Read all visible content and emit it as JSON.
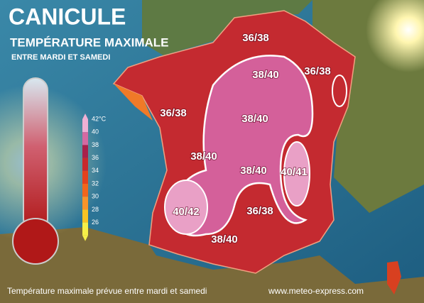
{
  "header": {
    "title": "CANICULE",
    "subtitle": "TEMPÉRATURE MAXIMALE",
    "period": "ENTRE MARDI ET SAMEDI"
  },
  "legend": [
    {
      "label": "42°C",
      "color": "#eeb0d4"
    },
    {
      "label": "40",
      "color": "#d46aa2"
    },
    {
      "label": "38",
      "color": "#a8204a"
    },
    {
      "label": "36",
      "color": "#c8282c"
    },
    {
      "label": "34",
      "color": "#e2421e"
    },
    {
      "label": "32",
      "color": "#f0661c"
    },
    {
      "label": "30",
      "color": "#f8942a"
    },
    {
      "label": "28",
      "color": "#f8c424"
    },
    {
      "label": "26",
      "color": "#f6f048"
    }
  ],
  "regions": [
    "36/38",
    "36/38",
    "38/40",
    "36/38",
    "38/40",
    "38/40",
    "38/40",
    "40/41",
    "40/42",
    "36/38",
    "38/40"
  ],
  "footer": {
    "caption": "Température maximale prévue entre mardi et samedi",
    "website": "www.meteo-express.com"
  }
}
